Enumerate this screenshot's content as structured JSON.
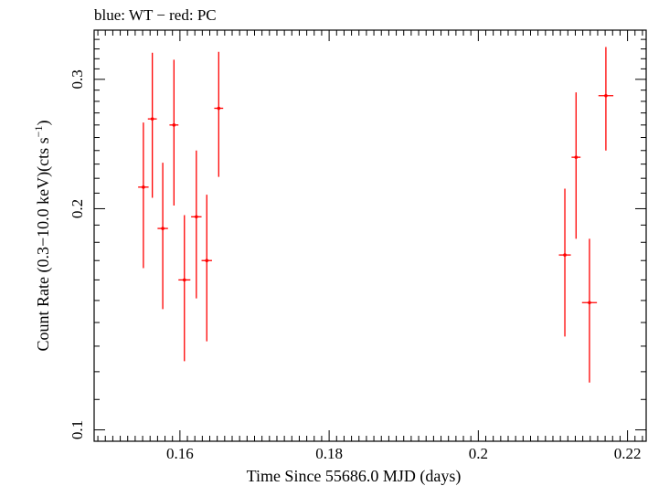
{
  "chart_data": {
    "type": "scatter",
    "title": "blue: WT − red: PC",
    "xlabel": "Time Since 55686.0 MJD (days)",
    "ylabel_main": "Count Rate (0.3−10.0 keV)(cts s",
    "ylabel_sup": "−1",
    "ylabel_tail": ")",
    "xlim": [
      0.1485,
      0.2225
    ],
    "ylim": [
      0.0965,
      0.35
    ],
    "x_ticks": [
      {
        "value": 0.16,
        "label": "0.16"
      },
      {
        "value": 0.18,
        "label": "0.18"
      },
      {
        "value": 0.2,
        "label": "0.2"
      },
      {
        "value": 0.22,
        "label": "0.22"
      }
    ],
    "y_ticks": [
      {
        "value": 0.1,
        "label": "0.1"
      },
      {
        "value": 0.2,
        "label": "0.2"
      },
      {
        "value": 0.3,
        "label": "0.3"
      }
    ],
    "grid": false,
    "series": [
      {
        "color": "#ff0000",
        "points": [
          {
            "x": 0.1551,
            "y": 0.214,
            "xerr": 0.0007,
            "ylo": 0.166,
            "yhi": 0.262
          },
          {
            "x": 0.1563,
            "y": 0.265,
            "xerr": 0.0006,
            "ylo": 0.207,
            "yhi": 0.326
          },
          {
            "x": 0.1577,
            "y": 0.188,
            "xerr": 0.0007,
            "ylo": 0.146,
            "yhi": 0.231
          },
          {
            "x": 0.1592,
            "y": 0.26,
            "xerr": 0.0006,
            "ylo": 0.202,
            "yhi": 0.319
          },
          {
            "x": 0.1606,
            "y": 0.16,
            "xerr": 0.0008,
            "ylo": 0.124,
            "yhi": 0.196
          },
          {
            "x": 0.1622,
            "y": 0.195,
            "xerr": 0.0007,
            "ylo": 0.151,
            "yhi": 0.24
          },
          {
            "x": 0.1636,
            "y": 0.17,
            "xerr": 0.0007,
            "ylo": 0.132,
            "yhi": 0.209
          },
          {
            "x": 0.1652,
            "y": 0.274,
            "xerr": 0.0006,
            "ylo": 0.221,
            "yhi": 0.327
          },
          {
            "x": 0.2116,
            "y": 0.173,
            "xerr": 0.0008,
            "ylo": 0.134,
            "yhi": 0.213
          },
          {
            "x": 0.2131,
            "y": 0.235,
            "xerr": 0.0006,
            "ylo": 0.182,
            "yhi": 0.288
          },
          {
            "x": 0.2149,
            "y": 0.149,
            "xerr": 0.001,
            "ylo": 0.116,
            "yhi": 0.182
          },
          {
            "x": 0.2171,
            "y": 0.285,
            "xerr": 0.001,
            "ylo": 0.24,
            "yhi": 0.332
          }
        ]
      }
    ]
  }
}
